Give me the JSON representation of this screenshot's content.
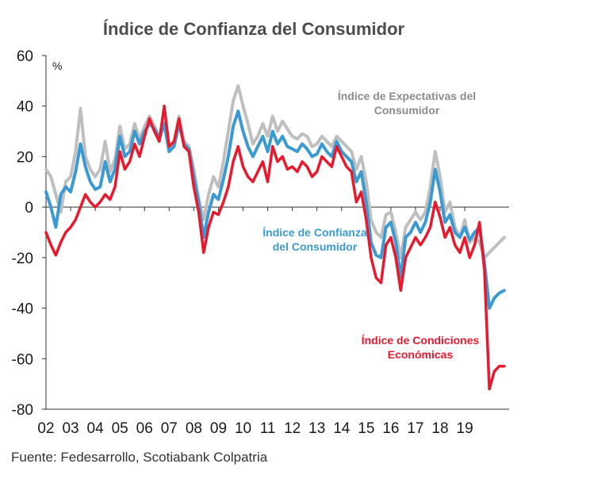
{
  "title": "Índice de Confianza del Consumidor",
  "source": "Fuente: Fedesarrollo, Scotiabank Colpatria",
  "colors": {
    "expectativas": "#bfbfbf",
    "confianza": "#3c9ad2",
    "condiciones": "#e8192c",
    "axis": "#333333",
    "text": "#1a1a1a"
  },
  "chart_data": {
    "type": "line",
    "ylabel": "%",
    "ylim": [
      -80,
      60
    ],
    "yticks": [
      60,
      40,
      20,
      0,
      -20,
      -40,
      -60,
      -80
    ],
    "xlim": [
      2002.0,
      2020.8
    ],
    "xticks": [
      {
        "x": 2002.0,
        "label": "02"
      },
      {
        "x": 2003.0,
        "label": "03"
      },
      {
        "x": 2004.0,
        "label": "04"
      },
      {
        "x": 2005.0,
        "label": "05"
      },
      {
        "x": 2006.0,
        "label": "06"
      },
      {
        "x": 2007.0,
        "label": "07"
      },
      {
        "x": 2008.0,
        "label": "08"
      },
      {
        "x": 2009.0,
        "label": "09"
      },
      {
        "x": 2010.0,
        "label": "10"
      },
      {
        "x": 2011.0,
        "label": "11"
      },
      {
        "x": 2012.0,
        "label": "12"
      },
      {
        "x": 2013.0,
        "label": "13"
      },
      {
        "x": 2014.0,
        "label": "14"
      },
      {
        "x": 2015.0,
        "label": "15"
      },
      {
        "x": 2016.0,
        "label": "16"
      },
      {
        "x": 2017.0,
        "label": "17"
      },
      {
        "x": 2018.0,
        "label": "18"
      },
      {
        "x": 2019.0,
        "label": "19"
      }
    ],
    "series": [
      {
        "name": "Índice de Expectativas del Consumidor",
        "key": "expectativas",
        "points": [
          [
            2002.0,
            15
          ],
          [
            2002.2,
            12
          ],
          [
            2002.4,
            5
          ],
          [
            2002.6,
            -2
          ],
          [
            2002.8,
            10
          ],
          [
            2003.0,
            12
          ],
          [
            2003.2,
            22
          ],
          [
            2003.4,
            39
          ],
          [
            2003.6,
            20
          ],
          [
            2003.8,
            15
          ],
          [
            2004.0,
            12
          ],
          [
            2004.2,
            15
          ],
          [
            2004.4,
            26
          ],
          [
            2004.6,
            14
          ],
          [
            2004.8,
            19
          ],
          [
            2005.0,
            32
          ],
          [
            2005.2,
            23
          ],
          [
            2005.4,
            25
          ],
          [
            2005.6,
            33
          ],
          [
            2005.8,
            27
          ],
          [
            2006.0,
            32
          ],
          [
            2006.2,
            36
          ],
          [
            2006.4,
            32
          ],
          [
            2006.6,
            28
          ],
          [
            2006.8,
            35
          ],
          [
            2007.0,
            22
          ],
          [
            2007.2,
            25
          ],
          [
            2007.4,
            36
          ],
          [
            2007.6,
            26
          ],
          [
            2007.8,
            24
          ],
          [
            2008.0,
            15
          ],
          [
            2008.2,
            3
          ],
          [
            2008.4,
            -5
          ],
          [
            2008.6,
            5
          ],
          [
            2008.8,
            12
          ],
          [
            2009.0,
            8
          ],
          [
            2009.2,
            18
          ],
          [
            2009.4,
            30
          ],
          [
            2009.6,
            42
          ],
          [
            2009.8,
            48
          ],
          [
            2010.0,
            40
          ],
          [
            2010.2,
            33
          ],
          [
            2010.4,
            25
          ],
          [
            2010.6,
            28
          ],
          [
            2010.8,
            33
          ],
          [
            2011.0,
            28
          ],
          [
            2011.2,
            36
          ],
          [
            2011.4,
            30
          ],
          [
            2011.6,
            34
          ],
          [
            2011.8,
            31
          ],
          [
            2012.0,
            28
          ],
          [
            2012.2,
            27
          ],
          [
            2012.4,
            29
          ],
          [
            2012.6,
            28
          ],
          [
            2012.8,
            24
          ],
          [
            2013.0,
            25
          ],
          [
            2013.2,
            28
          ],
          [
            2013.4,
            26
          ],
          [
            2013.6,
            24
          ],
          [
            2013.8,
            28
          ],
          [
            2014.0,
            26
          ],
          [
            2014.2,
            24
          ],
          [
            2014.4,
            22
          ],
          [
            2014.6,
            15
          ],
          [
            2014.8,
            20
          ],
          [
            2015.0,
            10
          ],
          [
            2015.2,
            -5
          ],
          [
            2015.4,
            -10
          ],
          [
            2015.6,
            -12
          ],
          [
            2015.8,
            -3
          ],
          [
            2016.0,
            -2
          ],
          [
            2016.2,
            -10
          ],
          [
            2016.4,
            -20
          ],
          [
            2016.6,
            -8
          ],
          [
            2016.8,
            -5
          ],
          [
            2017.0,
            -2
          ],
          [
            2017.2,
            -5
          ],
          [
            2017.4,
            -2
          ],
          [
            2017.6,
            8
          ],
          [
            2017.8,
            22
          ],
          [
            2018.0,
            12
          ],
          [
            2018.2,
            -2
          ],
          [
            2018.4,
            2
          ],
          [
            2018.6,
            -8
          ],
          [
            2018.8,
            -12
          ],
          [
            2019.0,
            -5
          ],
          [
            2019.2,
            -14
          ],
          [
            2019.4,
            -12
          ],
          [
            2019.6,
            -14
          ],
          [
            2019.8,
            -20
          ],
          [
            2020.0,
            -18
          ],
          [
            2020.2,
            -16
          ],
          [
            2020.4,
            -14
          ],
          [
            2020.6,
            -12
          ]
        ]
      },
      {
        "name": "Índice de Confianza del Consumidor",
        "key": "confianza",
        "points": [
          [
            2002.0,
            6
          ],
          [
            2002.2,
            0
          ],
          [
            2002.4,
            -8
          ],
          [
            2002.6,
            5
          ],
          [
            2002.8,
            8
          ],
          [
            2003.0,
            6
          ],
          [
            2003.2,
            14
          ],
          [
            2003.4,
            25
          ],
          [
            2003.6,
            16
          ],
          [
            2003.8,
            10
          ],
          [
            2004.0,
            7
          ],
          [
            2004.2,
            8
          ],
          [
            2004.4,
            18
          ],
          [
            2004.6,
            10
          ],
          [
            2004.8,
            15
          ],
          [
            2005.0,
            28
          ],
          [
            2005.2,
            20
          ],
          [
            2005.4,
            22
          ],
          [
            2005.6,
            30
          ],
          [
            2005.8,
            25
          ],
          [
            2006.0,
            30
          ],
          [
            2006.2,
            33
          ],
          [
            2006.4,
            31
          ],
          [
            2006.6,
            27
          ],
          [
            2006.8,
            33
          ],
          [
            2007.0,
            22
          ],
          [
            2007.2,
            24
          ],
          [
            2007.4,
            33
          ],
          [
            2007.6,
            25
          ],
          [
            2007.8,
            23
          ],
          [
            2008.0,
            12
          ],
          [
            2008.2,
            2
          ],
          [
            2008.4,
            -12
          ],
          [
            2008.6,
            -2
          ],
          [
            2008.8,
            5
          ],
          [
            2009.0,
            3
          ],
          [
            2009.2,
            11
          ],
          [
            2009.4,
            20
          ],
          [
            2009.6,
            32
          ],
          [
            2009.8,
            38
          ],
          [
            2010.0,
            30
          ],
          [
            2010.2,
            24
          ],
          [
            2010.4,
            20
          ],
          [
            2010.6,
            24
          ],
          [
            2010.8,
            28
          ],
          [
            2011.0,
            22
          ],
          [
            2011.2,
            30
          ],
          [
            2011.4,
            25
          ],
          [
            2011.6,
            28
          ],
          [
            2011.8,
            24
          ],
          [
            2012.0,
            23
          ],
          [
            2012.2,
            22
          ],
          [
            2012.4,
            25
          ],
          [
            2012.6,
            23
          ],
          [
            2012.8,
            20
          ],
          [
            2013.0,
            21
          ],
          [
            2013.2,
            25
          ],
          [
            2013.4,
            22
          ],
          [
            2013.6,
            20
          ],
          [
            2013.8,
            26
          ],
          [
            2014.0,
            22
          ],
          [
            2014.2,
            20
          ],
          [
            2014.4,
            18
          ],
          [
            2014.6,
            10
          ],
          [
            2014.8,
            14
          ],
          [
            2015.0,
            2
          ],
          [
            2015.2,
            -14
          ],
          [
            2015.4,
            -19
          ],
          [
            2015.6,
            -20
          ],
          [
            2015.8,
            -8
          ],
          [
            2016.0,
            -6
          ],
          [
            2016.2,
            -14
          ],
          [
            2016.4,
            -28
          ],
          [
            2016.6,
            -12
          ],
          [
            2016.8,
            -10
          ],
          [
            2017.0,
            -6
          ],
          [
            2017.2,
            -10
          ],
          [
            2017.4,
            -6
          ],
          [
            2017.6,
            2
          ],
          [
            2017.8,
            15
          ],
          [
            2018.0,
            6
          ],
          [
            2018.2,
            -6
          ],
          [
            2018.4,
            -3
          ],
          [
            2018.6,
            -10
          ],
          [
            2018.8,
            -12
          ],
          [
            2019.0,
            -8
          ],
          [
            2019.2,
            -13
          ],
          [
            2019.4,
            -10
          ],
          [
            2019.6,
            -8
          ],
          [
            2019.8,
            -22
          ],
          [
            2020.0,
            -40
          ],
          [
            2020.2,
            -36
          ],
          [
            2020.4,
            -34
          ],
          [
            2020.6,
            -33
          ]
        ]
      },
      {
        "name": "Índice de Condiciones Económicas",
        "key": "condiciones",
        "points": [
          [
            2002.0,
            -10
          ],
          [
            2002.2,
            -15
          ],
          [
            2002.4,
            -19
          ],
          [
            2002.6,
            -14
          ],
          [
            2002.8,
            -10
          ],
          [
            2003.0,
            -8
          ],
          [
            2003.2,
            -5
          ],
          [
            2003.4,
            0
          ],
          [
            2003.6,
            5
          ],
          [
            2003.8,
            2
          ],
          [
            2004.0,
            0
          ],
          [
            2004.2,
            2
          ],
          [
            2004.4,
            5
          ],
          [
            2004.6,
            3
          ],
          [
            2004.8,
            8
          ],
          [
            2005.0,
            22
          ],
          [
            2005.2,
            15
          ],
          [
            2005.4,
            18
          ],
          [
            2005.6,
            25
          ],
          [
            2005.8,
            20
          ],
          [
            2006.0,
            28
          ],
          [
            2006.2,
            35
          ],
          [
            2006.4,
            30
          ],
          [
            2006.6,
            26
          ],
          [
            2006.8,
            40
          ],
          [
            2007.0,
            24
          ],
          [
            2007.2,
            26
          ],
          [
            2007.4,
            35
          ],
          [
            2007.6,
            24
          ],
          [
            2007.8,
            22
          ],
          [
            2008.0,
            8
          ],
          [
            2008.2,
            -2
          ],
          [
            2008.4,
            -18
          ],
          [
            2008.6,
            -8
          ],
          [
            2008.8,
            -2
          ],
          [
            2009.0,
            -3
          ],
          [
            2009.2,
            2
          ],
          [
            2009.4,
            8
          ],
          [
            2009.6,
            18
          ],
          [
            2009.8,
            24
          ],
          [
            2010.0,
            16
          ],
          [
            2010.2,
            12
          ],
          [
            2010.4,
            10
          ],
          [
            2010.6,
            14
          ],
          [
            2010.8,
            18
          ],
          [
            2011.0,
            10
          ],
          [
            2011.2,
            24
          ],
          [
            2011.4,
            18
          ],
          [
            2011.6,
            20
          ],
          [
            2011.8,
            15
          ],
          [
            2012.0,
            16
          ],
          [
            2012.2,
            14
          ],
          [
            2012.4,
            18
          ],
          [
            2012.6,
            16
          ],
          [
            2012.8,
            12
          ],
          [
            2013.0,
            14
          ],
          [
            2013.2,
            20
          ],
          [
            2013.4,
            18
          ],
          [
            2013.6,
            16
          ],
          [
            2013.8,
            24
          ],
          [
            2014.0,
            20
          ],
          [
            2014.2,
            16
          ],
          [
            2014.4,
            14
          ],
          [
            2014.6,
            2
          ],
          [
            2014.8,
            6
          ],
          [
            2015.0,
            -5
          ],
          [
            2015.2,
            -20
          ],
          [
            2015.4,
            -28
          ],
          [
            2015.6,
            -30
          ],
          [
            2015.8,
            -15
          ],
          [
            2016.0,
            -12
          ],
          [
            2016.2,
            -20
          ],
          [
            2016.4,
            -33
          ],
          [
            2016.6,
            -20
          ],
          [
            2016.8,
            -16
          ],
          [
            2017.0,
            -12
          ],
          [
            2017.2,
            -15
          ],
          [
            2017.4,
            -12
          ],
          [
            2017.6,
            -8
          ],
          [
            2017.8,
            2
          ],
          [
            2018.0,
            -4
          ],
          [
            2018.2,
            -12
          ],
          [
            2018.4,
            -8
          ],
          [
            2018.6,
            -15
          ],
          [
            2018.8,
            -18
          ],
          [
            2019.0,
            -12
          ],
          [
            2019.2,
            -20
          ],
          [
            2019.4,
            -15
          ],
          [
            2019.6,
            -6
          ],
          [
            2019.8,
            -25
          ],
          [
            2020.0,
            -72
          ],
          [
            2020.2,
            -65
          ],
          [
            2020.4,
            -63
          ],
          [
            2020.6,
            -63
          ]
        ]
      }
    ],
    "annotations": [
      {
        "series": "expectativas",
        "lines": [
          "Índice de Expectativas del",
          "Consumidor"
        ]
      },
      {
        "series": "confianza",
        "lines": [
          "Índice de Confianza",
          "del Consumidor"
        ]
      },
      {
        "series": "condiciones",
        "lines": [
          "Índice de Condiciones",
          "Económicas"
        ]
      }
    ]
  }
}
